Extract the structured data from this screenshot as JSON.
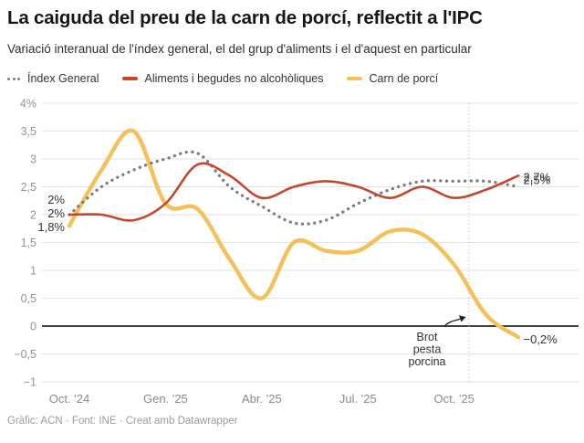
{
  "header": {
    "title": "La caiguda del preu de la carn de porcí, reflectit a l'IPC",
    "subtitle": "Variació interanual de l'índex general, el del grup d'aliments i el d'aquest en particular"
  },
  "legend": {
    "items": [
      {
        "label": "Índex General",
        "color": "#7c7c7c",
        "style": "dotted"
      },
      {
        "label": "Aliments i begudes no alcohòliques",
        "color": "#c4472c",
        "style": "solid"
      },
      {
        "label": "Carn de porcí",
        "color": "#f5c05a",
        "style": "solid"
      }
    ]
  },
  "chart_data": {
    "type": "line",
    "unit": "%",
    "x": [
      "Oct. '24",
      "Nov. '24",
      "Des. '24",
      "Gen. '25",
      "Febr. '25",
      "Març '25",
      "Abr. '25",
      "Maig '25",
      "Juny '25",
      "Jul. '25",
      "Ag. '25",
      "Set. '25",
      "Oct. '25",
      "Nov. '25",
      "Des. '25"
    ],
    "x_tick_labels": [
      "Oct. '24",
      "Gen. '25",
      "Abr. '25",
      "Jul. '25",
      "Oct. '25"
    ],
    "x_tick_positions": [
      0,
      3,
      6,
      9,
      12
    ],
    "ylim": [
      -1,
      4
    ],
    "grid": "horizontal",
    "y_ticks": [
      {
        "value": 4,
        "label": "4%"
      },
      {
        "value": 3.5,
        "label": "3,5"
      },
      {
        "value": 3,
        "label": "3"
      },
      {
        "value": 2.5,
        "label": "2,5"
      },
      {
        "value": 2,
        "label": "2"
      },
      {
        "value": 1.5,
        "label": "1,5"
      },
      {
        "value": 1,
        "label": "1"
      },
      {
        "value": 0.5,
        "label": "0,5"
      },
      {
        "value": 0,
        "label": "0"
      },
      {
        "value": -0.5,
        "label": "−0,5"
      },
      {
        "value": -1,
        "label": "−1"
      }
    ],
    "series": [
      {
        "name": "Índex General",
        "color": "#7c7c7c",
        "style": "dotted",
        "values": [
          2.0,
          2.5,
          2.8,
          3.0,
          3.1,
          2.5,
          2.15,
          1.85,
          1.9,
          2.2,
          2.45,
          2.6,
          2.6,
          2.6,
          2.5
        ],
        "start_label": "2%",
        "end_label": "2,5%"
      },
      {
        "name": "Aliments i begudes no alcohòliques",
        "color": "#c4472c",
        "style": "solid",
        "values": [
          2.0,
          2.0,
          1.9,
          2.2,
          2.9,
          2.7,
          2.3,
          2.5,
          2.6,
          2.5,
          2.3,
          2.5,
          2.3,
          2.45,
          2.7
        ],
        "start_label": "2%",
        "end_label": "2,7%"
      },
      {
        "name": "Carn de porcí",
        "color": "#f5c05a",
        "style": "solid",
        "values": [
          1.8,
          2.8,
          3.5,
          2.2,
          2.1,
          1.2,
          0.5,
          1.5,
          1.35,
          1.35,
          1.7,
          1.65,
          1.1,
          0.2,
          -0.2
        ],
        "start_label": "1,8%",
        "end_label": "−0,2%"
      }
    ],
    "event_line": {
      "x_index": 12.46,
      "label_lines": [
        "Brot",
        "pesta",
        "porcina"
      ]
    }
  },
  "footer": {
    "credit": "Gràfic: ACN · Font: INE · Creat amb Datawrapper"
  }
}
